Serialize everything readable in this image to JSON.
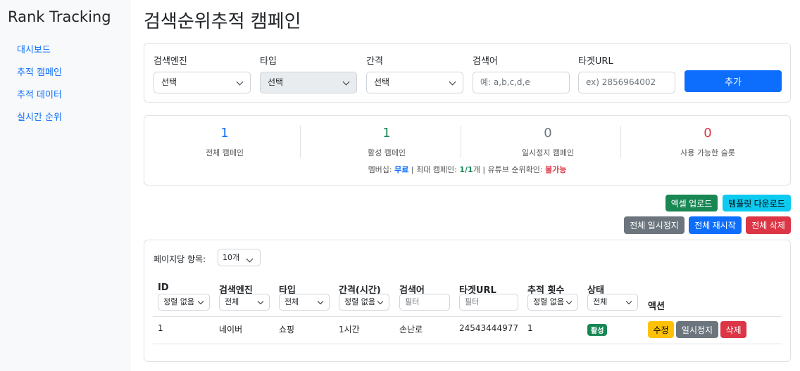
{
  "sidebar": {
    "brand": "Rank Tracking",
    "items": [
      {
        "label": "대시보드"
      },
      {
        "label": "추적 캠페인"
      },
      {
        "label": "추적 데이터"
      },
      {
        "label": "실시간 순위"
      }
    ]
  },
  "page_title": "검색순위추적 캠페인",
  "form": {
    "engine_label": "검색엔진",
    "engine_value": "선택",
    "type_label": "타입",
    "type_value": "선택",
    "interval_label": "간격",
    "interval_value": "선택",
    "keyword_label": "검색어",
    "keyword_placeholder": "예: a,b,c,d,e",
    "url_label": "타겟URL",
    "url_placeholder": "ex) 2856964002",
    "add": "추가"
  },
  "stats": [
    {
      "value": "1",
      "label": "전체 캠페인",
      "color": "#0d6efd"
    },
    {
      "value": "1",
      "label": "활성 캠페인",
      "color": "#198754"
    },
    {
      "value": "0",
      "label": "일시정지 캠페인",
      "color": "#6c757d"
    },
    {
      "value": "0",
      "label": "사용 가능한 슬롯",
      "color": "#dc3545"
    }
  ],
  "membership": {
    "prefix": "멤버십: ",
    "plan": "무료",
    "mid": " | 최대 캠페인: ",
    "max": "1/1",
    "unit": "개 | 유튜브 순위확인: ",
    "youtube": "불가능"
  },
  "actions": {
    "excel_upload": "엑셀 업로드",
    "template_download": "템플릿 다운로드",
    "pause_all": "전체 일시정지",
    "restart_all": "전체 재시작",
    "delete_all": "전체 삭제"
  },
  "table": {
    "per_page_label": "페이지당 항목:",
    "per_page": "10개",
    "headers": [
      "ID",
      "검색엔진",
      "타입",
      "간격(시간)",
      "검색어",
      "타겟URL",
      "추적 횟수",
      "상태",
      "액션"
    ],
    "filters": [
      "정렬 없음",
      "전체",
      "전체",
      "정렬 없음",
      "필터",
      "필터",
      "정렬 없음",
      "전체"
    ],
    "rows": [
      {
        "id": "1",
        "engine": "네이버",
        "type": "쇼핑",
        "interval": "1시간",
        "keyword": "손난로",
        "url": "24543444977",
        "count": "1",
        "status": "활성",
        "edit": "수정",
        "pause": "일시정지",
        "delete": "삭제"
      }
    ]
  }
}
